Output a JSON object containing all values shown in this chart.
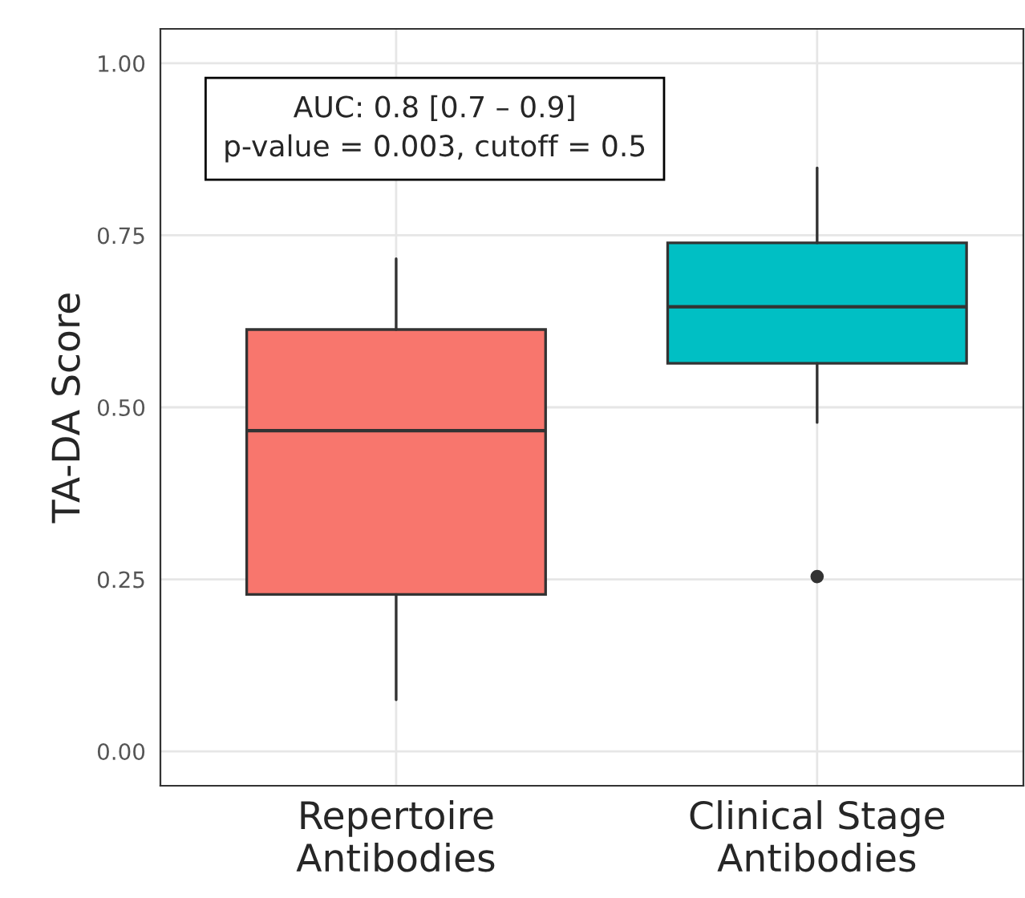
{
  "chart_data": {
    "type": "box",
    "ylabel": "TA-DA Score",
    "categories": [
      "Repertoire\nAntibodies",
      "Clinical Stage\nAntibodies"
    ],
    "colors": [
      "#f8766d",
      "#00bfc4"
    ],
    "boxes": [
      {
        "low": 0.075,
        "q1": 0.228,
        "median": 0.466,
        "q3": 0.613,
        "high": 0.716
      },
      {
        "low": 0.478,
        "q1": 0.564,
        "median": 0.646,
        "q3": 0.739,
        "high": 0.848,
        "outliers": [
          0.254
        ]
      }
    ],
    "ylim": [
      -0.05,
      1.05
    ],
    "yticks": [
      {
        "value": 0,
        "label": "0.00"
      },
      {
        "value": 0.25,
        "label": "0.25"
      },
      {
        "value": 0.5,
        "label": "0.50"
      },
      {
        "value": 0.75,
        "label": "0.75"
      },
      {
        "value": 1,
        "label": "1.00"
      }
    ],
    "grid": true,
    "annotations": [
      "AUC: 0.8 [0.7 – 0.9]",
      "p-value = 0.003, cutoff = 0.5"
    ]
  }
}
